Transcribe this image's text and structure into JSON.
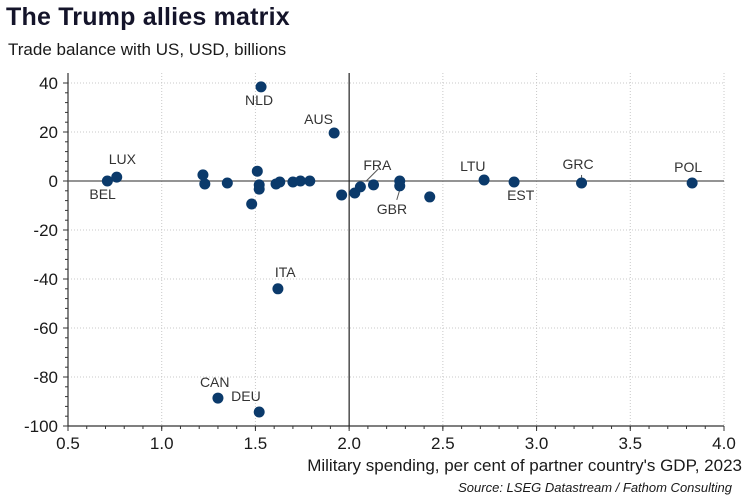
{
  "chart_data": {
    "type": "scatter",
    "title": "The Trump allies matrix",
    "subtitle": "Trade balance with US, USD, billions",
    "xlabel": "Military spending, per cent of partner country's GDP, 2023",
    "ylabel": "Trade balance with US, USD, billions",
    "source": "Source: LSEG Datastream / Fathom Consulting",
    "xlim": [
      0.5,
      4.0
    ],
    "ylim": [
      -100,
      40
    ],
    "xticks": [
      "0.5",
      "1.0",
      "1.5",
      "2.0",
      "2.5",
      "3.0",
      "3.5",
      "4.0"
    ],
    "yticks": [
      "40",
      "20",
      "0",
      "-20",
      "-40",
      "-60",
      "-80",
      "-100"
    ],
    "grid": "dotted",
    "reference_lines": {
      "x": 2.0,
      "y": 0
    },
    "marker_color": "#0b3a6b",
    "points": [
      {
        "label": "BEL",
        "x": 0.71,
        "y": 0.0
      },
      {
        "label": "LUX",
        "x": 0.76,
        "y": 1.6
      },
      {
        "label": "",
        "x": 1.22,
        "y": 2.5
      },
      {
        "label": "",
        "x": 1.23,
        "y": -1.2
      },
      {
        "label": "",
        "x": 1.35,
        "y": -0.8
      },
      {
        "label": "",
        "x": 1.48,
        "y": -9.4
      },
      {
        "label": "",
        "x": 1.51,
        "y": 4.0
      },
      {
        "label": "",
        "x": 1.52,
        "y": -1.6
      },
      {
        "label": "",
        "x": 1.52,
        "y": -3.3
      },
      {
        "label": "NLD",
        "x": 1.53,
        "y": 38.4
      },
      {
        "label": "",
        "x": 1.61,
        "y": -1.2
      },
      {
        "label": "",
        "x": 1.63,
        "y": -0.4
      },
      {
        "label": "",
        "x": 1.7,
        "y": -0.4
      },
      {
        "label": "",
        "x": 1.74,
        "y": 0.0
      },
      {
        "label": "",
        "x": 1.79,
        "y": 0.0
      },
      {
        "label": "AUS",
        "x": 1.92,
        "y": 19.6
      },
      {
        "label": "",
        "x": 1.96,
        "y": -5.7
      },
      {
        "label": "",
        "x": 2.03,
        "y": -4.9
      },
      {
        "label": "FRA",
        "x": 2.06,
        "y": -2.4
      },
      {
        "label": "",
        "x": 2.13,
        "y": -1.6
      },
      {
        "label": "",
        "x": 2.27,
        "y": 0.0
      },
      {
        "label": "GBR",
        "x": 2.27,
        "y": -2.0
      },
      {
        "label": "",
        "x": 2.43,
        "y": -6.5
      },
      {
        "label": "LTU",
        "x": 2.72,
        "y": 0.4
      },
      {
        "label": "EST",
        "x": 2.88,
        "y": -0.4
      },
      {
        "label": "GRC",
        "x": 3.24,
        "y": -0.8
      },
      {
        "label": "POL",
        "x": 3.83,
        "y": -0.8
      },
      {
        "label": "ITA",
        "x": 1.62,
        "y": -44.0
      },
      {
        "label": "CAN",
        "x": 1.3,
        "y": -88.6
      },
      {
        "label": "DEU",
        "x": 1.52,
        "y": -94.3
      }
    ]
  }
}
